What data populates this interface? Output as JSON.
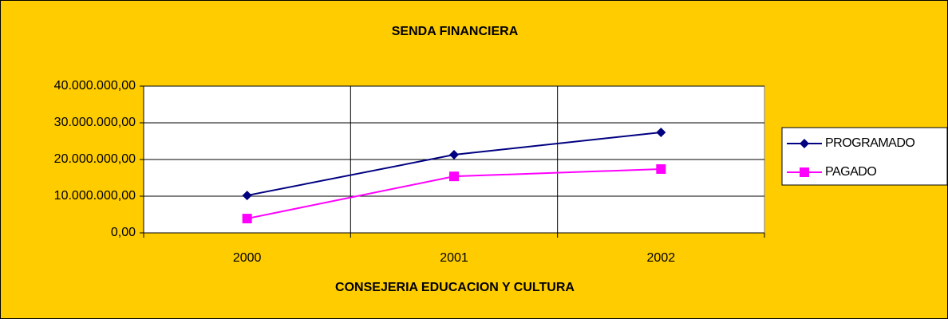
{
  "chart_data": {
    "type": "line",
    "title": "SENDA FINANCIERA",
    "x_label": "CONSEJERIA EDUCACION Y CULTURA",
    "categories": [
      "2000",
      "2001",
      "2002"
    ],
    "series": [
      {
        "name": "PROGRAMADO",
        "color": "#000080",
        "marker": "diamond",
        "values": [
          10200000,
          21300000,
          27400000
        ]
      },
      {
        "name": "PAGADO",
        "color": "#FF00FF",
        "marker": "square",
        "values": [
          3900000,
          15400000,
          17400000
        ]
      }
    ],
    "ylim": [
      0,
      40000000
    ],
    "yticks": [
      {
        "value": 0,
        "label": "0,00"
      },
      {
        "value": 10000000,
        "label": "10.000.000,00"
      },
      {
        "value": 20000000,
        "label": "20.000.000,00"
      },
      {
        "value": 30000000,
        "label": "30.000.000,00"
      },
      {
        "value": 40000000,
        "label": "40.000.000,00"
      }
    ],
    "grid": true,
    "legend": "right"
  }
}
